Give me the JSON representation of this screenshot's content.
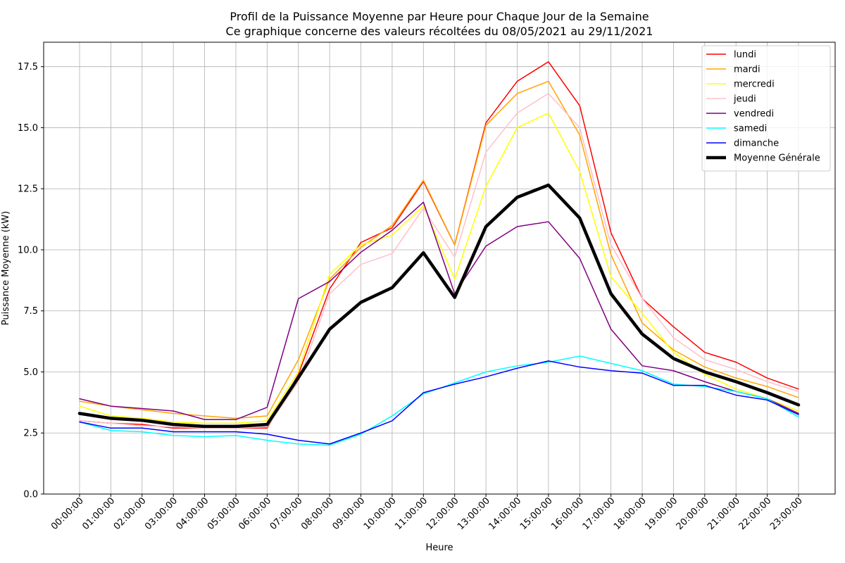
{
  "chart_data": {
    "type": "line",
    "title": "Profil de la Puissance Moyenne par Heure pour Chaque Jour de la Semaine",
    "subtitle": "Ce graphique concerne des valeurs récoltées du 08/05/2021 au 29/11/2021",
    "xlabel": "Heure",
    "ylabel": "Puissance Moyenne (kW)",
    "ylim": [
      0,
      18.5
    ],
    "yticks": [
      0,
      2.5,
      5,
      7.5,
      10,
      12.5,
      15,
      17.5
    ],
    "ytick_labels": [
      "0.0",
      "2.5",
      "5.0",
      "7.5",
      "10.0",
      "12.5",
      "15.0",
      "17.5"
    ],
    "grid": true,
    "legend_position": "top-right",
    "categories": [
      "00:00:00",
      "01:00:00",
      "02:00:00",
      "03:00:00",
      "04:00:00",
      "05:00:00",
      "06:00:00",
      "07:00:00",
      "08:00:00",
      "09:00:00",
      "10:00:00",
      "11:00:00",
      "12:00:00",
      "13:00:00",
      "14:00:00",
      "15:00:00",
      "16:00:00",
      "17:00:00",
      "18:00:00",
      "19:00:00",
      "20:00:00",
      "21:00:00",
      "22:00:00",
      "23:00:00"
    ],
    "series": [
      {
        "name": "lundi",
        "color": "#ff0000",
        "width": 1.5,
        "values": [
          3.0,
          2.9,
          2.85,
          2.7,
          2.7,
          2.7,
          2.7,
          4.9,
          8.4,
          10.3,
          10.9,
          12.8,
          10.2,
          15.2,
          16.9,
          17.7,
          15.9,
          10.7,
          8.0,
          6.85,
          5.8,
          5.4,
          4.75,
          4.3
        ]
      },
      {
        "name": "mardi",
        "color": "#ffa500",
        "width": 1.5,
        "values": [
          3.8,
          3.6,
          3.45,
          3.3,
          3.2,
          3.1,
          3.2,
          5.5,
          8.8,
          10.1,
          11.0,
          12.85,
          10.2,
          15.1,
          16.4,
          16.9,
          14.7,
          9.8,
          7.0,
          5.9,
          5.2,
          4.75,
          4.4,
          3.95
        ]
      },
      {
        "name": "mercredi",
        "color": "#ffff00",
        "width": 1.5,
        "values": [
          3.6,
          3.2,
          3.1,
          2.95,
          2.9,
          2.9,
          3.0,
          5.0,
          9.0,
          10.2,
          10.6,
          11.8,
          8.8,
          12.6,
          15.0,
          15.6,
          13.2,
          8.9,
          7.4,
          5.8,
          4.9,
          4.3,
          3.9,
          3.4
        ]
      },
      {
        "name": "jeudi",
        "color": "#ffc0cb",
        "width": 1.5,
        "values": [
          3.0,
          2.9,
          2.8,
          2.75,
          2.7,
          2.7,
          2.75,
          4.6,
          8.2,
          9.4,
          9.85,
          11.7,
          9.7,
          14.0,
          15.6,
          16.4,
          15.0,
          10.2,
          8.0,
          6.4,
          5.5,
          5.1,
          4.6,
          4.2
        ]
      },
      {
        "name": "vendredi",
        "color": "#800080",
        "width": 1.5,
        "values": [
          3.9,
          3.6,
          3.5,
          3.4,
          3.05,
          3.05,
          3.55,
          8.0,
          8.7,
          9.9,
          10.8,
          11.95,
          8.2,
          10.15,
          10.95,
          11.15,
          9.65,
          6.75,
          5.25,
          5.05,
          4.6,
          4.2,
          3.9,
          3.3
        ]
      },
      {
        "name": "samedi",
        "color": "#00ffff",
        "width": 1.5,
        "values": [
          2.95,
          2.6,
          2.55,
          2.4,
          2.35,
          2.4,
          2.2,
          2.05,
          2.0,
          2.45,
          3.2,
          4.1,
          4.55,
          5.0,
          5.25,
          5.4,
          5.65,
          5.35,
          5.05,
          4.5,
          4.4,
          4.2,
          3.9,
          3.15
        ]
      },
      {
        "name": "dimanche",
        "color": "#0000ff",
        "width": 1.5,
        "values": [
          2.95,
          2.7,
          2.7,
          2.55,
          2.55,
          2.55,
          2.45,
          2.2,
          2.05,
          2.5,
          3.0,
          4.15,
          4.5,
          4.8,
          5.15,
          5.45,
          5.2,
          5.05,
          4.95,
          4.45,
          4.45,
          4.05,
          3.85,
          3.25
        ]
      },
      {
        "name": "Moyenne Générale",
        "color": "#000000",
        "width": 4.5,
        "values": [
          3.3,
          3.1,
          3.02,
          2.85,
          2.77,
          2.77,
          2.85,
          4.77,
          6.75,
          7.85,
          8.45,
          9.88,
          8.05,
          10.95,
          12.15,
          12.65,
          11.3,
          8.2,
          6.55,
          5.55,
          5.0,
          4.6,
          4.15,
          3.65
        ]
      }
    ]
  }
}
